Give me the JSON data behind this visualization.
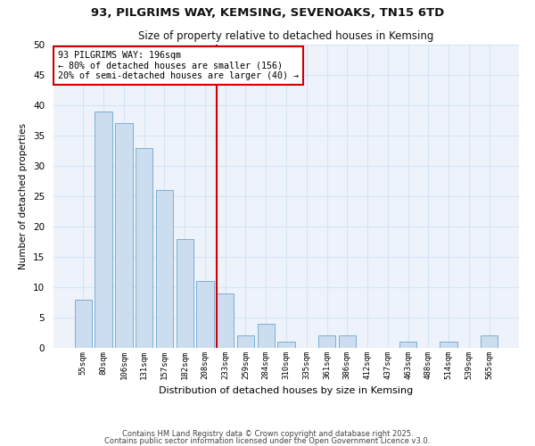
{
  "title_line1": "93, PILGRIMS WAY, KEMSING, SEVENOAKS, TN15 6TD",
  "title_line2": "Size of property relative to detached houses in Kemsing",
  "bar_labels": [
    "55sqm",
    "80sqm",
    "106sqm",
    "131sqm",
    "157sqm",
    "182sqm",
    "208sqm",
    "233sqm",
    "259sqm",
    "284sqm",
    "310sqm",
    "335sqm",
    "361sqm",
    "386sqm",
    "412sqm",
    "437sqm",
    "463sqm",
    "488sqm",
    "514sqm",
    "539sqm",
    "565sqm"
  ],
  "bar_values": [
    8,
    39,
    37,
    33,
    26,
    18,
    11,
    9,
    2,
    4,
    1,
    0,
    2,
    2,
    0,
    0,
    1,
    0,
    1,
    0,
    2
  ],
  "bar_color": "#ccddf0",
  "bar_edge_color": "#7aafd4",
  "vline_x_index": 7,
  "vline_color": "#cc0000",
  "annotation_text": "93 PILGRIMS WAY: 196sqm\n← 80% of detached houses are smaller (156)\n20% of semi-detached houses are larger (40) →",
  "annotation_box_facecolor": "#ffffff",
  "annotation_border_color": "#cc0000",
  "ylabel": "Number of detached properties",
  "xlabel": "Distribution of detached houses by size in Kemsing",
  "ylim": [
    0,
    50
  ],
  "yticks": [
    0,
    5,
    10,
    15,
    20,
    25,
    30,
    35,
    40,
    45,
    50
  ],
  "grid_color": "#d5e4f5",
  "footer_line1": "Contains HM Land Registry data © Crown copyright and database right 2025.",
  "footer_line2": "Contains public sector information licensed under the Open Government Licence v3.0.",
  "bg_color": "#ffffff",
  "plot_bg_color": "#eef3fb"
}
